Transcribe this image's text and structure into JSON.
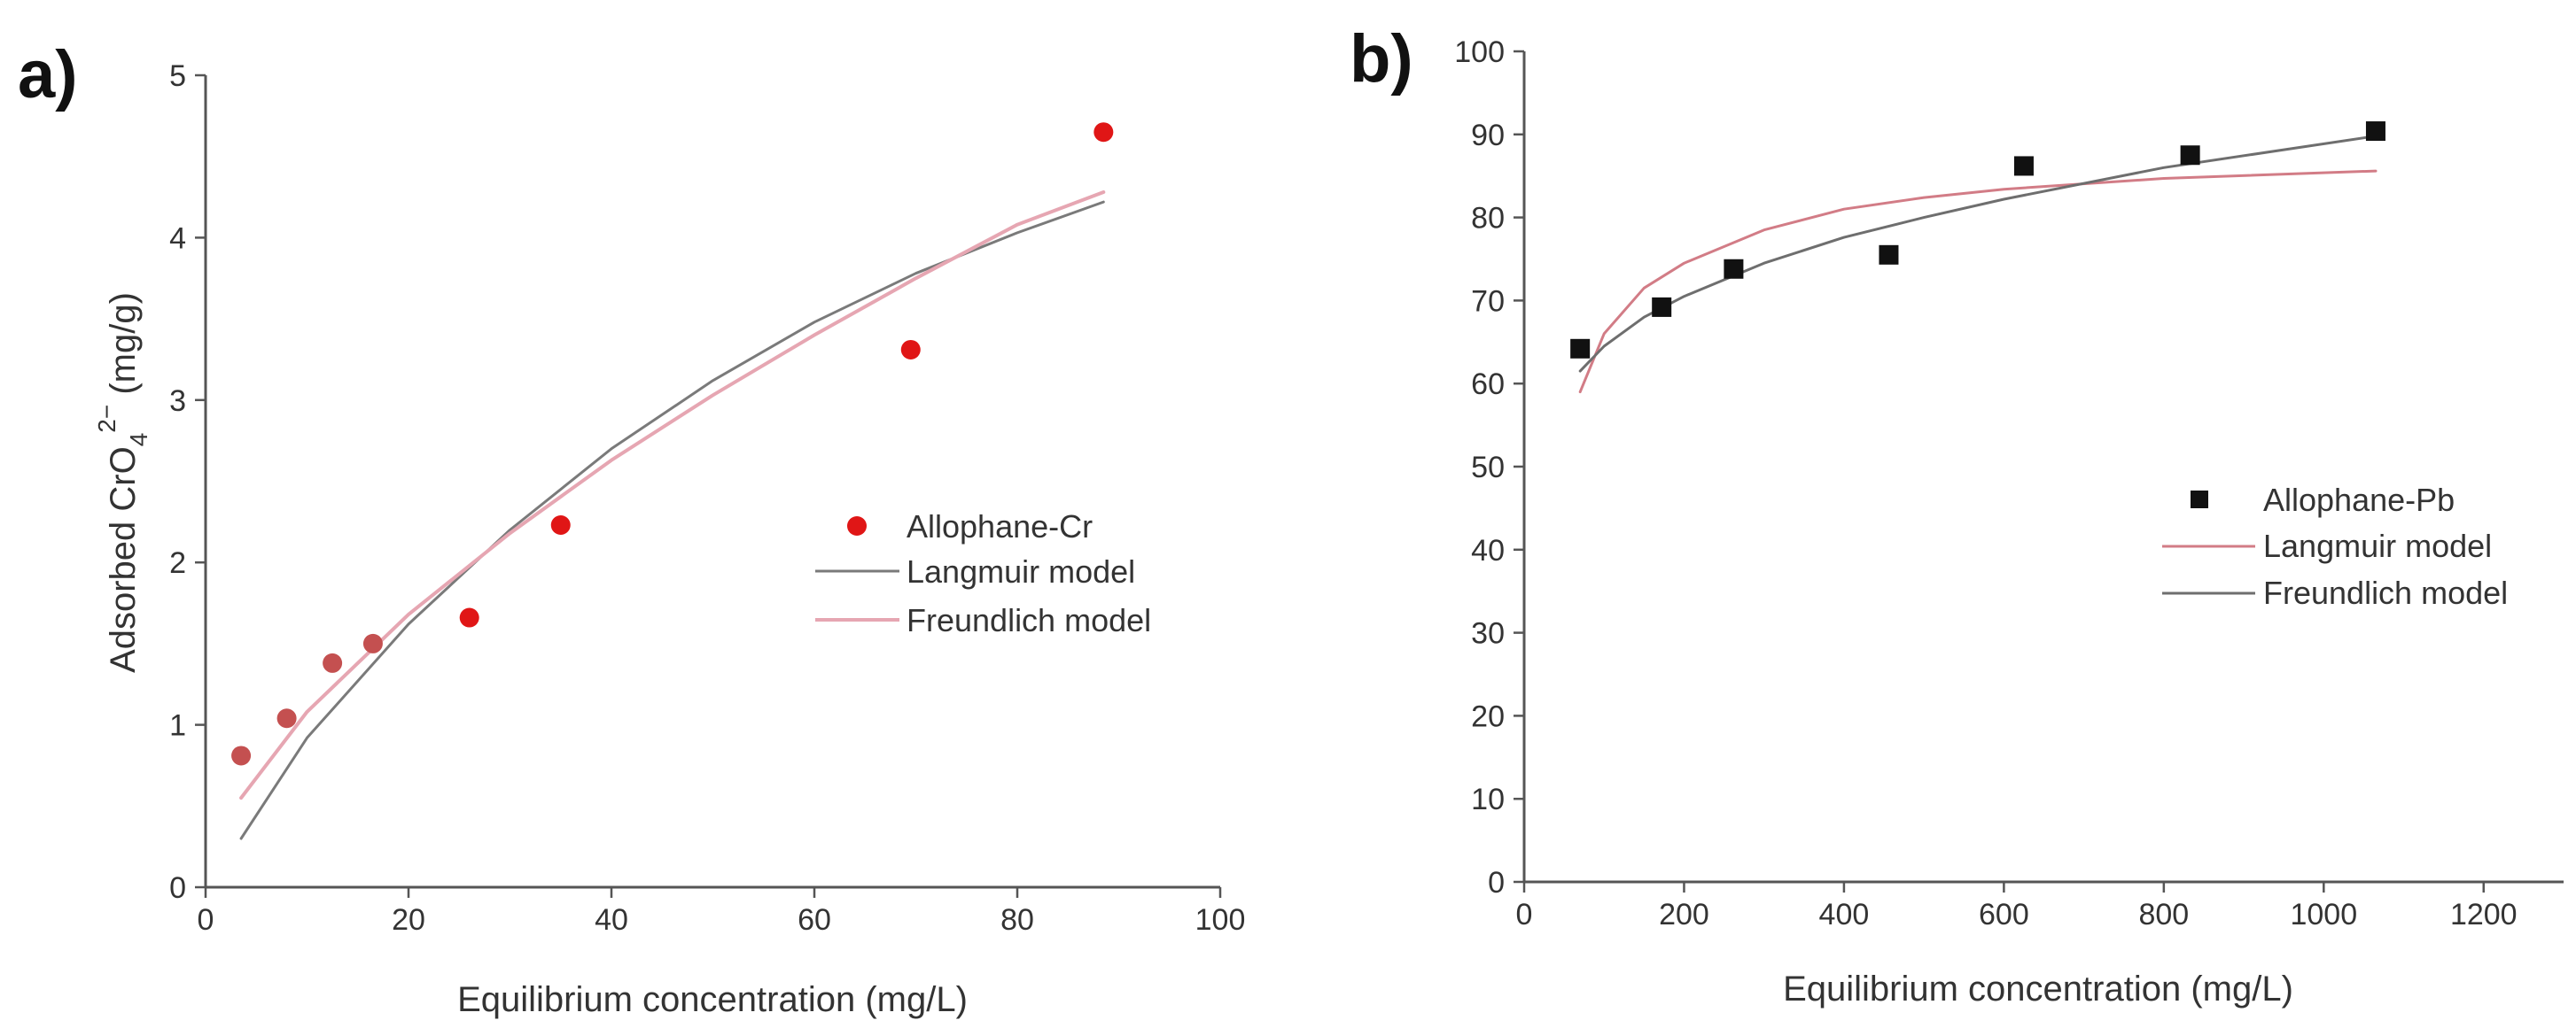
{
  "colors": {
    "axis": "#555555",
    "text": "#333333",
    "cr_points": "#e01616",
    "cr_points_left": "#c45050",
    "pb_points": "#111111",
    "langmuir_a": "#7a7a7a",
    "freundlich_a": "#e6a6b2",
    "langmuir_b": "#d27c86",
    "freundlich_b": "#6e6e6e"
  },
  "chart_data": [
    {
      "panel_label": "a)",
      "type": "scatter",
      "xlabel": "Equilibrium concentration (mg/L)",
      "ylabel_prefix": "Adsorbed CrO",
      "ylabel_sub": "4",
      "ylabel_sup": "2−",
      "ylabel_suffix": " (mg/g)",
      "xlim": [
        0,
        100
      ],
      "ylim": [
        0,
        5
      ],
      "xticks": [
        0,
        20,
        40,
        60,
        80,
        100
      ],
      "yticks": [
        0,
        1,
        2,
        3,
        4,
        5
      ],
      "grid": false,
      "legend_position": "center-right",
      "series": [
        {
          "name": "Allophane-Cr",
          "kind": "points",
          "marker": "circle",
          "x": [
            3.5,
            8,
            12.5,
            16.5,
            26,
            35,
            69.5,
            88.5
          ],
          "y": [
            0.81,
            1.04,
            1.38,
            1.5,
            1.66,
            2.23,
            3.31,
            4.65
          ]
        },
        {
          "name": "Langmuir model",
          "kind": "line",
          "x": [
            3.5,
            10,
            20,
            30,
            40,
            50,
            60,
            70,
            80,
            88.5
          ],
          "y": [
            0.3,
            0.92,
            1.62,
            2.2,
            2.7,
            3.12,
            3.48,
            3.78,
            4.03,
            4.22
          ]
        },
        {
          "name": "Freundlich model",
          "kind": "line",
          "x": [
            3.5,
            10,
            20,
            30,
            40,
            50,
            60,
            70,
            80,
            88.5
          ],
          "y": [
            0.55,
            1.08,
            1.68,
            2.18,
            2.63,
            3.03,
            3.4,
            3.75,
            4.08,
            4.28
          ]
        }
      ]
    },
    {
      "panel_label": "b)",
      "type": "scatter",
      "xlabel": "Equilibrium concentration (mg/L)",
      "ylabel": "",
      "xlim": [
        0,
        1300
      ],
      "ylim": [
        0,
        100
      ],
      "xticks": [
        0,
        200,
        400,
        600,
        800,
        1000,
        1200
      ],
      "yticks": [
        0,
        10,
        20,
        30,
        40,
        50,
        60,
        70,
        80,
        90,
        100
      ],
      "grid": false,
      "legend_position": "center-right",
      "series": [
        {
          "name": "Allophane-Pb",
          "kind": "points",
          "marker": "square",
          "x": [
            70,
            172,
            262,
            456,
            625,
            833,
            1065
          ],
          "y": [
            64.2,
            69.2,
            73.8,
            75.5,
            86.2,
            87.5,
            90.4
          ]
        },
        {
          "name": "Langmuir model",
          "kind": "line",
          "x": [
            70,
            100,
            150,
            200,
            300,
            400,
            500,
            600,
            800,
            1065
          ],
          "y": [
            59,
            66,
            71.5,
            74.5,
            78.5,
            81,
            82.4,
            83.4,
            84.7,
            85.6
          ]
        },
        {
          "name": "Freundlich model",
          "kind": "line",
          "x": [
            70,
            100,
            150,
            200,
            300,
            400,
            500,
            600,
            800,
            1065
          ],
          "y": [
            61.5,
            64.5,
            68,
            70.5,
            74.5,
            77.6,
            80,
            82.2,
            86,
            89.8
          ]
        }
      ]
    }
  ]
}
